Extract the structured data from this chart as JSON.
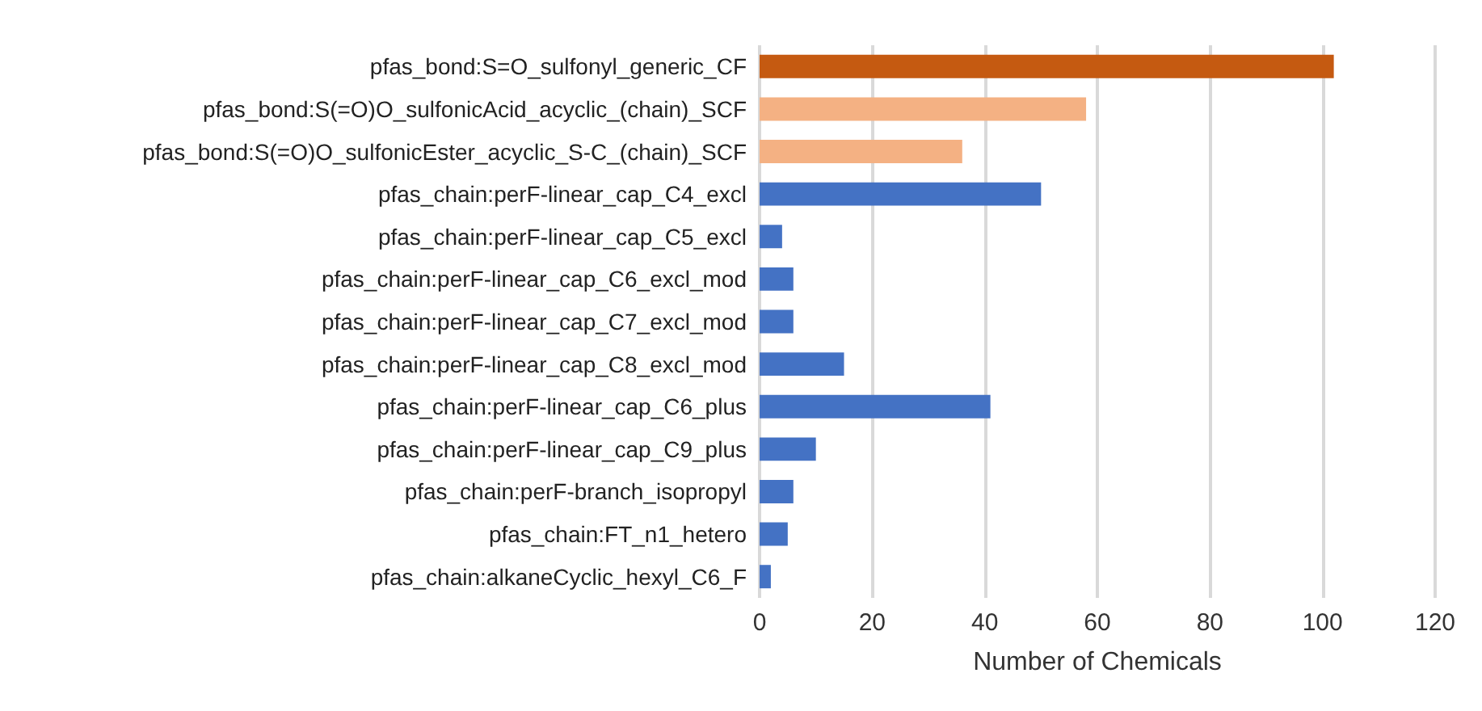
{
  "chart_data": {
    "type": "bar",
    "orientation": "horizontal",
    "xlabel": "Number of Chemicals",
    "categories": [
      "pfas_bond:S=O_sulfonyl_generic_CF",
      "pfas_bond:S(=O)O_sulfonicAcid_acyclic_(chain)_SCF",
      "pfas_bond:S(=O)O_sulfonicEster_acyclic_S-C_(chain)_SCF",
      "pfas_chain:perF-linear_cap_C4_excl",
      "pfas_chain:perF-linear_cap_C5_excl",
      "pfas_chain:perF-linear_cap_C6_excl_mod",
      "pfas_chain:perF-linear_cap_C7_excl_mod",
      "pfas_chain:perF-linear_cap_C8_excl_mod",
      "pfas_chain:perF-linear_cap_C6_plus",
      "pfas_chain:perF-linear_cap_C9_plus",
      "pfas_chain:perF-branch_isopropyl",
      "pfas_chain:FT_n1_hetero",
      "pfas_chain:alkaneCyclic_hexyl_C6_F"
    ],
    "values": [
      102,
      58,
      36,
      50,
      4,
      6,
      6,
      15,
      41,
      10,
      6,
      5,
      2
    ],
    "colors": [
      "#c55a11",
      "#f4b183",
      "#f4b183",
      "#4472c4",
      "#4472c4",
      "#4472c4",
      "#4472c4",
      "#4472c4",
      "#4472c4",
      "#4472c4",
      "#4472c4",
      "#4472c4",
      "#4472c4"
    ],
    "xlim": [
      0,
      120
    ],
    "xticks": [
      0,
      20,
      40,
      60,
      80,
      100,
      120
    ],
    "grid": "x"
  }
}
